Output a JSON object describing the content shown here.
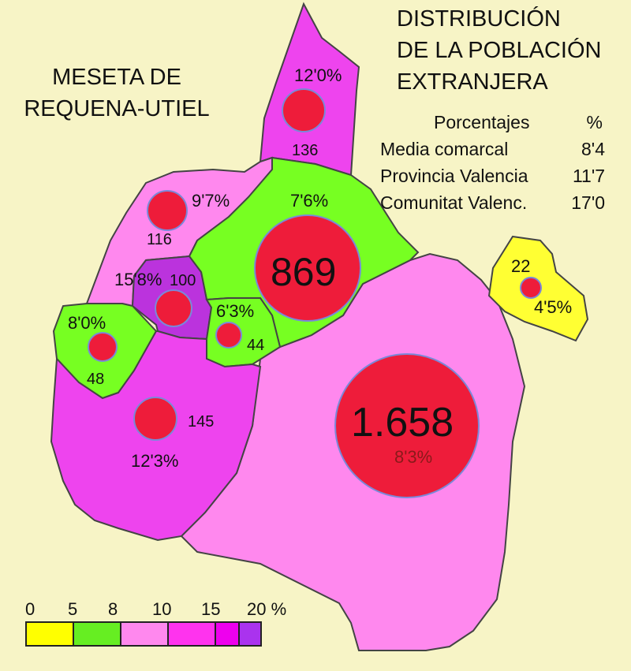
{
  "title_left": [
    "MESETA DE",
    "REQUENA-UTIEL"
  ],
  "title_right": [
    "DISTRIBUCIÓN",
    "DE LA POBLACIÓN",
    "EXTRANJERA"
  ],
  "stats": {
    "header": {
      "label": "Porcentajes",
      "value": "%"
    },
    "rows": [
      {
        "label": "Media comarcal",
        "value": "8'4"
      },
      {
        "label": "Provincia Valencia",
        "value": "11'7"
      },
      {
        "label": "Comunitat Valenc.",
        "value": "17'0"
      }
    ]
  },
  "municipalities": [
    {
      "id": "north",
      "pct": "12'0%",
      "count": "136"
    },
    {
      "id": "northwest",
      "pct": "9'7%",
      "count": "116"
    },
    {
      "id": "center-north",
      "pct": "7'6%",
      "count": "869"
    },
    {
      "id": "center-west",
      "pct": "15'8%",
      "count": "100"
    },
    {
      "id": "west",
      "pct": "8'0%",
      "count": "48"
    },
    {
      "id": "center-small",
      "pct": "6'3%",
      "count": "44"
    },
    {
      "id": "southwest",
      "pct": "12'3%",
      "count": "145"
    },
    {
      "id": "southeast",
      "pct": "8'3%",
      "count": "1.658"
    },
    {
      "id": "east-enclave",
      "pct": "4'5%",
      "count": "22"
    }
  ],
  "scale": {
    "ticks": [
      "0",
      "5",
      "8",
      "10",
      "15",
      "20 %"
    ],
    "colors": [
      "#ffff00",
      "#66ee22",
      "#ff88ee",
      "#ff33ee",
      "#ee00ee",
      "#aa33ee"
    ]
  },
  "colors": {
    "background": "#f7f4c6",
    "circle": "#ee1c3a",
    "circle_stroke": "#7a88d8",
    "border": "#444444",
    "class_yellow": "#ffff33",
    "class_green": "#77ff22",
    "class_pink": "#ff88ee",
    "class_magenta": "#ee44ee",
    "class_purple": "#bb33dd"
  }
}
